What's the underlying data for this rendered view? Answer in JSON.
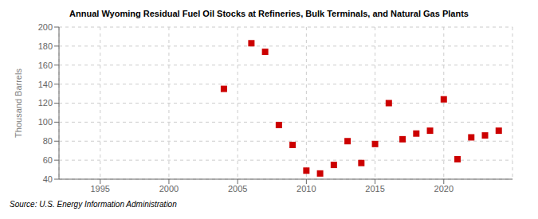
{
  "chart_data": {
    "type": "scatter",
    "title": "Annual Wyoming Residual Fuel Oil Stocks at Refineries, Bulk Terminals, and Natural Gas Plants",
    "ylabel": "Thousand Barrels",
    "annotations": [
      "Source: U.S. Energy Information Administration"
    ],
    "x": [
      2004,
      2006,
      2007,
      2008,
      2009,
      2010,
      2011,
      2012,
      2013,
      2014,
      2015,
      2016,
      2017,
      2018,
      2019,
      2020,
      2021,
      2022,
      2023,
      2024
    ],
    "values": [
      135,
      183,
      174,
      97,
      76,
      49,
      46,
      55,
      80,
      57,
      77,
      120,
      82,
      88,
      91,
      124,
      61,
      84,
      86,
      91
    ],
    "color": "#cc0000",
    "marker": "square",
    "xlim": [
      1992,
      2025
    ],
    "ylim": [
      40,
      200
    ],
    "xticks": [
      1995,
      2000,
      2005,
      2010,
      2015,
      2020
    ],
    "yticks": [
      40,
      60,
      80,
      100,
      120,
      140,
      160,
      180,
      200
    ],
    "grid": true
  }
}
